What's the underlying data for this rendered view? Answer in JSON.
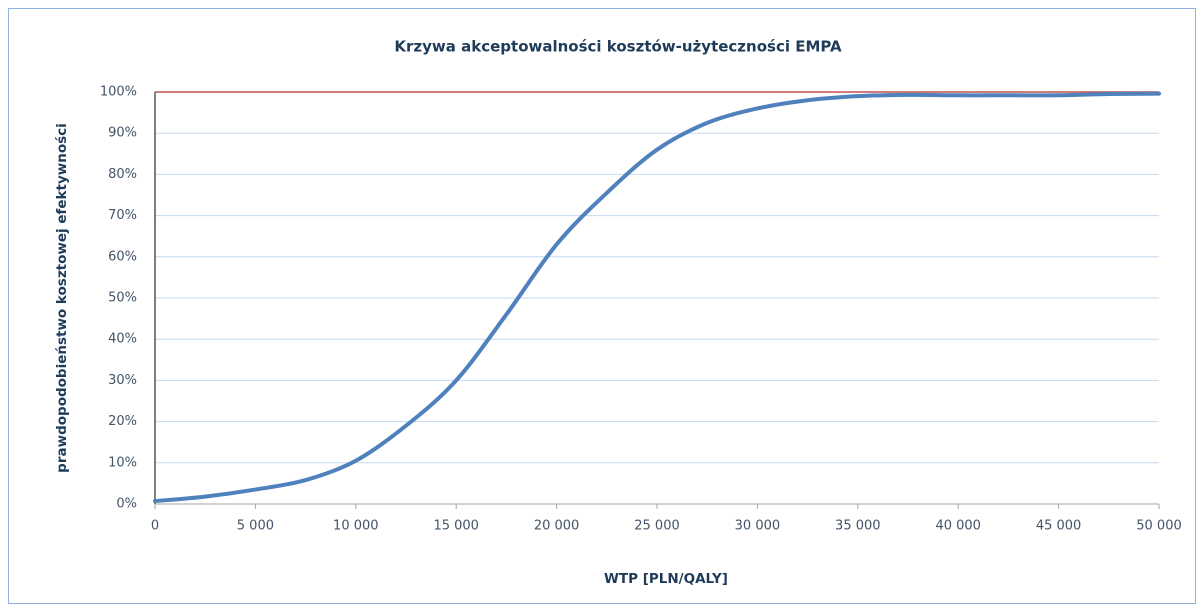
{
  "chart_data": {
    "type": "line",
    "title": "Krzywa akceptowalności kosztów-użyteczności EMPA",
    "x_label": "WTP [PLN/QALY]",
    "y_label": "prawdopodobieństwo kosztowej efektywności",
    "x": [
      0,
      2500,
      5000,
      7500,
      10000,
      12500,
      15000,
      17500,
      20000,
      22500,
      25000,
      27500,
      30000,
      32500,
      35000,
      37500,
      40000,
      42500,
      45000,
      47500,
      50000
    ],
    "series": [
      {
        "color": "#4f81bd",
        "values": [
          0.7,
          1.8,
          3.5,
          5.8,
          10.5,
          19,
          30,
          46,
          63,
          75.5,
          86,
          92.5,
          96,
          98,
          99,
          99.3,
          99.2,
          99.2,
          99.2,
          99.5,
          99.6
        ]
      }
    ],
    "reference_line": {
      "y": 100,
      "color": "#c0504d"
    },
    "xlim": [
      0,
      50000
    ],
    "xticks": [
      0,
      {
        "value": 5000,
        "label": "5 000"
      },
      {
        "value": 10000,
        "label": "10 000"
      },
      {
        "value": 15000,
        "label": "15 000"
      },
      {
        "value": 20000,
        "label": "20 000"
      },
      {
        "value": 25000,
        "label": "25 000"
      },
      {
        "value": 30000,
        "label": "30 000"
      },
      {
        "value": 35000,
        "label": "35 000"
      },
      {
        "value": 40000,
        "label": "40 000"
      },
      {
        "value": 45000,
        "label": "45 000"
      },
      {
        "value": 50000,
        "label": "50 000"
      }
    ],
    "ylim": [
      0,
      100
    ],
    "yticks": [
      {
        "value": 0,
        "label": "0%"
      },
      {
        "value": 10,
        "label": "10%"
      },
      {
        "value": 20,
        "label": "20%"
      },
      {
        "value": 30,
        "label": "30%"
      },
      {
        "value": 40,
        "label": "40%"
      },
      {
        "value": 50,
        "label": "50%"
      },
      {
        "value": 60,
        "label": "60%"
      },
      {
        "value": 70,
        "label": "70%"
      },
      {
        "value": 80,
        "label": "80%"
      },
      {
        "value": 90,
        "label": "90%"
      },
      {
        "value": 100,
        "label": "100%"
      }
    ],
    "grid": true
  }
}
